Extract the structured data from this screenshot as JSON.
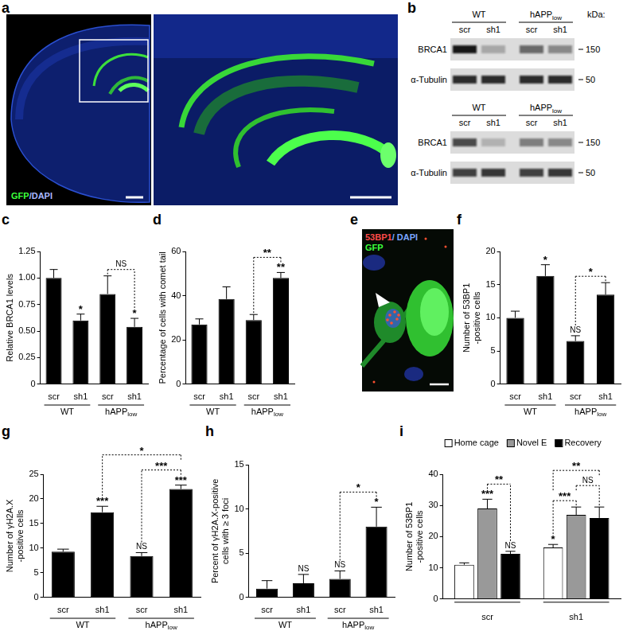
{
  "chart_data": [
    {
      "panel": "c",
      "type": "bar",
      "ylabel": [
        "Relative BRCA1 levels"
      ],
      "categories": [
        "scr",
        "sh1",
        "scr",
        "sh1"
      ],
      "groups": [
        {
          "label": "WT",
          "span": 2
        },
        {
          "label": "hAPP",
          "subscript": "low",
          "span": 2
        }
      ],
      "values": [
        1.0,
        0.6,
        0.85,
        0.54
      ],
      "errors": [
        0.08,
        0.06,
        0.17,
        0.08
      ],
      "marks": [
        null,
        "*",
        null,
        "*"
      ],
      "brackets": [
        {
          "from": 2,
          "to": 3,
          "label": "NS"
        }
      ],
      "color": "#000000",
      "ylim": [
        0,
        1.25
      ],
      "yticks": [
        0,
        0.25,
        {
          "value": 0.5,
          "label": "0.50"
        },
        0.75,
        {
          "value": 1,
          "label": "1.00"
        },
        1.25
      ],
      "grid": false
    },
    {
      "panel": "d",
      "type": "bar",
      "ylabel": [
        "Percentage of cells with comet tail"
      ],
      "categories": [
        "scr",
        "sh1",
        "scr",
        "sh1"
      ],
      "groups": [
        {
          "label": "WT",
          "span": 2
        },
        {
          "label": "hAPP",
          "subscript": "low",
          "span": 2
        }
      ],
      "values": [
        27,
        38.5,
        29,
        48
      ],
      "errors": [
        2.5,
        5.5,
        2.5,
        2.5
      ],
      "marks": [
        null,
        null,
        null,
        "**"
      ],
      "brackets": [
        {
          "from": 2,
          "to": 3,
          "label": "**"
        }
      ],
      "color": "#000000",
      "ylim": [
        0,
        60
      ],
      "yticks": [
        0,
        20,
        40,
        60
      ],
      "grid": false
    },
    {
      "panel": "f",
      "type": "bar",
      "ylabel": [
        "Number of 53BP1",
        "-positive cells"
      ],
      "categories": [
        "scr",
        "sh1",
        "scr",
        "sh1"
      ],
      "groups": [
        {
          "label": "WT",
          "span": 2
        },
        {
          "label": "hAPP",
          "subscript": "low",
          "span": 2
        }
      ],
      "values": [
        10,
        16.3,
        6.5,
        13.5
      ],
      "errors": [
        1,
        1.7,
        0.8,
        1.8
      ],
      "marks": [
        null,
        "*",
        "NS",
        null
      ],
      "brackets": [
        {
          "from": 2,
          "to": 3,
          "label": "*"
        }
      ],
      "color": "#000000",
      "ylim": [
        0,
        20
      ],
      "yticks": [
        0,
        5,
        10,
        15,
        20
      ],
      "grid": false
    },
    {
      "panel": "g",
      "type": "bar",
      "ylabel": [
        "Number of γH2A.X",
        "-positive cells"
      ],
      "categories": [
        "scr",
        "sh1",
        "scr",
        "sh1"
      ],
      "groups": [
        {
          "label": "WT",
          "span": 2
        },
        {
          "label": "hAPP",
          "subscript": "low",
          "span": 2
        }
      ],
      "values": [
        9.3,
        17.3,
        8.4,
        22
      ],
      "errors": [
        0.5,
        1.2,
        0.7,
        0.8
      ],
      "marks": [
        null,
        "***",
        "NS",
        "***"
      ],
      "brackets": [
        {
          "from": 2,
          "to": 3,
          "label": "***"
        },
        {
          "from": 1,
          "to": 3,
          "label": "*"
        }
      ],
      "color": "#000000",
      "ylim": [
        0,
        25
      ],
      "yticks": [
        0,
        5,
        10,
        15,
        20,
        25
      ],
      "grid": false
    },
    {
      "panel": "h",
      "type": "bar",
      "ylabel": [
        "Percent of γH2A.X-positive",
        "cells with ≥ 3 foci"
      ],
      "categories": [
        "scr",
        "sh1",
        "scr",
        "sh1"
      ],
      "groups": [
        {
          "label": "WT",
          "span": 2
        },
        {
          "label": "hAPP",
          "subscript": "low",
          "span": 2
        }
      ],
      "values": [
        1,
        1.6,
        2.1,
        8
      ],
      "errors": [
        0.9,
        1,
        0.9,
        2.2
      ],
      "marks": [
        null,
        "NS",
        "NS",
        "*"
      ],
      "brackets": [
        {
          "from": 2,
          "to": 3,
          "label": "*"
        }
      ],
      "color": "#000000",
      "ylim": [
        0,
        15
      ],
      "yticks": [
        0,
        5,
        10,
        15
      ],
      "grid": false
    },
    {
      "panel": "i",
      "type": "bar",
      "ylabel": [
        "Number of 53BP1",
        "-positive cells"
      ],
      "categories": [
        "scr",
        "sh1"
      ],
      "series": [
        {
          "name": "Home cage",
          "color": "#ffffff",
          "values": [
            11,
            16.5
          ],
          "errors": [
            0.6,
            1.0
          ],
          "marks": [
            null,
            "*"
          ]
        },
        {
          "name": "Novel E",
          "color": "#999999",
          "values": [
            29,
            27
          ],
          "errors": [
            3,
            2.5
          ],
          "marks": [
            "***",
            null
          ]
        },
        {
          "name": "Recovery",
          "color": "#000000",
          "values": [
            14.5,
            26
          ],
          "errors": [
            0.8,
            3.5
          ],
          "marks": [
            "NS",
            null
          ]
        }
      ],
      "brackets": [
        {
          "category": 0,
          "from": 1,
          "to": 2,
          "label": "**"
        },
        {
          "category": 1,
          "from": 0,
          "to": 1,
          "label": "***"
        },
        {
          "category": 1,
          "from": 1,
          "to": 2,
          "label": "NS"
        },
        {
          "category": 1,
          "from": 0,
          "to": 2,
          "label": "**"
        }
      ],
      "ylim": [
        0,
        40
      ],
      "yticks": [
        0,
        10,
        20,
        30,
        40
      ],
      "legend": "upper left",
      "grid": false
    }
  ],
  "image_panels": {
    "a": {
      "panel": "a",
      "stain_lines": [
        [
          "GFP",
          "/DAPI"
        ]
      ]
    },
    "b": {
      "panel": "b",
      "unit": "kDa:",
      "blots": [
        {
          "groups": [
            {
              "label": "WT",
              "span": 2
            },
            {
              "label": "hAPP",
              "subscript": "low",
              "span": 2
            }
          ],
          "lanes": [
            "scr",
            "sh1",
            "scr",
            "sh1"
          ],
          "rows": [
            {
              "label": "BRCA1",
              "marker": 150
            },
            {
              "label": "α-Tubulin",
              "marker": 50
            }
          ]
        },
        {
          "groups": [
            {
              "label": "WT",
              "span": 2
            },
            {
              "label": "hAPP",
              "subscript": "low",
              "span": 2
            }
          ],
          "lanes": [
            "scr",
            "sh1",
            "scr",
            "sh1"
          ],
          "rows": [
            {
              "label": "BRCA1",
              "marker": 150
            },
            {
              "label": "α-Tubulin",
              "marker": 50
            }
          ]
        }
      ]
    },
    "e": {
      "panel": "e",
      "stain_lines": [
        [
          "53BP1",
          "/ DAPI"
        ],
        [
          "GFP"
        ]
      ]
    }
  }
}
